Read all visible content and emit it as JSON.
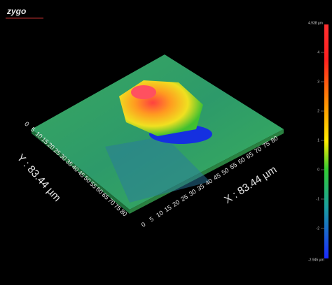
{
  "logo": "zygo",
  "x_axis": {
    "label": "X : 83.44 µm",
    "ticks": [
      0,
      5,
      10,
      15,
      20,
      25,
      30,
      35,
      40,
      45,
      50,
      55,
      60,
      65,
      70,
      75,
      80
    ]
  },
  "y_axis": {
    "label": "Y : 83.44 µm",
    "ticks": [
      0,
      5,
      10,
      15,
      20,
      25,
      30,
      35,
      40,
      45,
      50,
      55,
      60,
      65,
      70,
      75,
      80
    ]
  },
  "colorbar": {
    "max_label": "4.938 µm",
    "min_label": "-2.945 µm",
    "ticks": [
      4,
      3,
      2,
      1,
      0,
      -1,
      -2
    ]
  }
}
